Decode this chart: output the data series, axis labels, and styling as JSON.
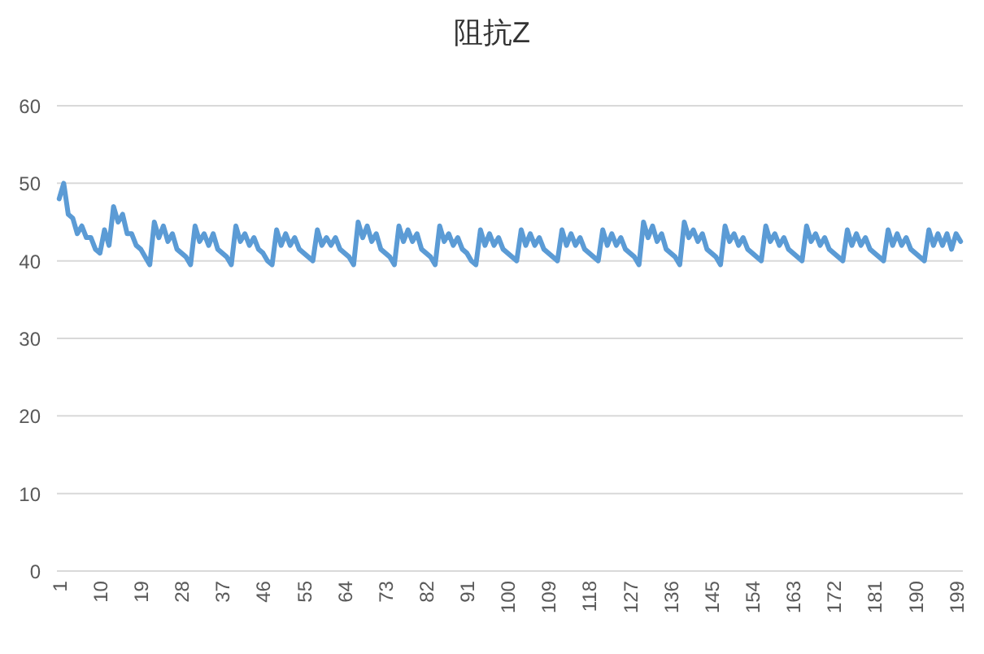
{
  "chart_data": {
    "type": "line",
    "title": "阻抗Z",
    "categories": [
      "1",
      null,
      null,
      null,
      null,
      null,
      null,
      null,
      null,
      "10",
      null,
      null,
      null,
      null,
      null,
      null,
      null,
      null,
      "19",
      null,
      null,
      null,
      null,
      null,
      null,
      null,
      null,
      "28",
      null,
      null,
      null,
      null,
      null,
      null,
      null,
      null,
      "37",
      null,
      null,
      null,
      null,
      null,
      null,
      null,
      null,
      "46",
      null,
      null,
      null,
      null,
      null,
      null,
      null,
      null,
      "55",
      null,
      null,
      null,
      null,
      null,
      null,
      null,
      null,
      "64",
      null,
      null,
      null,
      null,
      null,
      null,
      null,
      null,
      "73",
      null,
      null,
      null,
      null,
      null,
      null,
      null,
      null,
      "82",
      null,
      null,
      null,
      null,
      null,
      null,
      null,
      null,
      "91",
      null,
      null,
      null,
      null,
      null,
      null,
      null,
      null,
      "100",
      null,
      null,
      null,
      null,
      null,
      null,
      null,
      null,
      "109",
      null,
      null,
      null,
      null,
      null,
      null,
      null,
      null,
      "118",
      null,
      null,
      null,
      null,
      null,
      null,
      null,
      null,
      "127",
      null,
      null,
      null,
      null,
      null,
      null,
      null,
      null,
      "136",
      null,
      null,
      null,
      null,
      null,
      null,
      null,
      null,
      "145",
      null,
      null,
      null,
      null,
      null,
      null,
      null,
      null,
      "154",
      null,
      null,
      null,
      null,
      null,
      null,
      null,
      null,
      "163",
      null,
      null,
      null,
      null,
      null,
      null,
      null,
      null,
      "172",
      null,
      null,
      null,
      null,
      null,
      null,
      null,
      null,
      "181",
      null,
      null,
      null,
      null,
      null,
      null,
      null,
      null,
      "190",
      null,
      null,
      null,
      null,
      null,
      null,
      null,
      null,
      "199",
      null
    ],
    "series": [
      {
        "color": "#5b9bd5",
        "values": [
          48,
          50,
          46,
          45.5,
          43.5,
          44.5,
          43,
          43,
          41.5,
          41,
          44,
          42,
          47,
          45,
          46,
          43.5,
          43.5,
          42,
          41.5,
          40.5,
          39.5,
          45,
          43,
          44.5,
          42.5,
          43.5,
          41.5,
          41,
          40.5,
          39.5,
          44.5,
          42.5,
          43.5,
          42,
          43.5,
          41.5,
          41,
          40.5,
          39.5,
          44.5,
          42.5,
          43.5,
          42,
          43,
          41.5,
          41,
          40,
          39.5,
          44,
          42,
          43.5,
          42,
          43,
          41.5,
          41,
          40.5,
          40,
          44,
          42,
          43,
          42,
          43,
          41.5,
          41,
          40.5,
          39.5,
          45,
          43,
          44.5,
          42.5,
          43.5,
          41.5,
          41,
          40.5,
          39.5,
          44.5,
          42.5,
          44,
          42.5,
          43.5,
          41.5,
          41,
          40.5,
          39.5,
          44.5,
          42.5,
          43.5,
          42,
          43,
          41.5,
          41,
          40,
          39.5,
          44,
          42,
          43.5,
          42,
          43,
          41.5,
          41,
          40.5,
          40,
          44,
          42,
          43.5,
          42,
          43,
          41.5,
          41,
          40.5,
          40,
          44,
          42,
          43.5,
          42,
          43,
          41.5,
          41,
          40.5,
          40,
          44,
          42,
          43.5,
          42,
          43,
          41.5,
          41,
          40.5,
          39.5,
          45,
          43,
          44.5,
          42.5,
          43.5,
          41.5,
          41,
          40.5,
          39.5,
          45,
          43,
          44,
          42.5,
          43.5,
          41.5,
          41,
          40.5,
          39.5,
          44.5,
          42.5,
          43.5,
          42,
          43,
          41.5,
          41,
          40.5,
          40,
          44.5,
          42.5,
          43.5,
          42,
          43,
          41.5,
          41,
          40.5,
          40,
          44.5,
          42.5,
          43.5,
          42,
          43,
          41.5,
          41,
          40.5,
          40,
          44,
          42,
          43.5,
          42,
          43,
          41.5,
          41,
          40.5,
          40,
          44,
          42,
          43.5,
          42,
          43,
          41.5,
          41,
          40.5,
          40,
          44,
          42,
          43.5,
          42,
          43.5,
          41.5,
          43.5,
          42.5
        ]
      }
    ],
    "ylim": [
      0,
      60
    ],
    "yticks": [
      0,
      10,
      20,
      30,
      40,
      50,
      60
    ],
    "grid": "y"
  }
}
